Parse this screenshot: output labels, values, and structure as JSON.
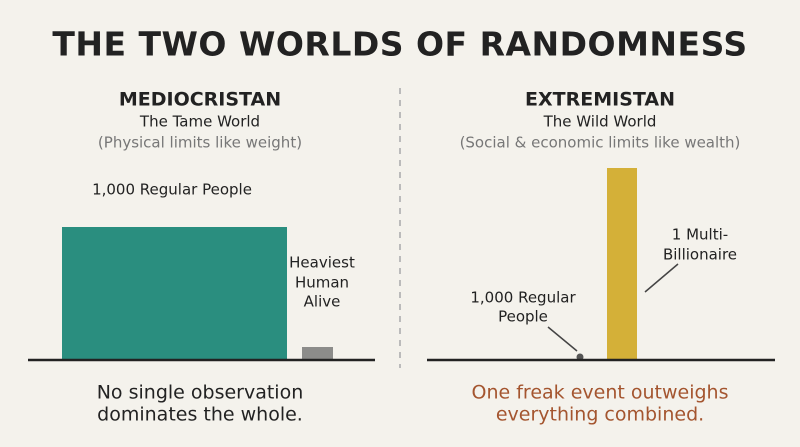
{
  "title": "THE TWO WORLDS OF RANDOMNESS",
  "panels": [
    {
      "heading": "MEDIOCRISTAN",
      "subtitle": "The Tame World",
      "note": "(Physical limits like weight)",
      "labels": [
        [
          "1,000 Regular People"
        ],
        [
          "Heaviest",
          "Human",
          "Alive"
        ]
      ],
      "caption": [
        "No single observation",
        "dominates the whole."
      ]
    },
    {
      "heading": "EXTREMISTAN",
      "subtitle": "The Wild World",
      "note": "(Social & economic limits like wealth)",
      "labels": [
        [
          "1,000 Regular",
          "People"
        ],
        [
          "1 Multi-",
          "Billionaire"
        ]
      ],
      "caption": [
        "One freak event outweighs",
        "everything combined."
      ]
    }
  ]
}
